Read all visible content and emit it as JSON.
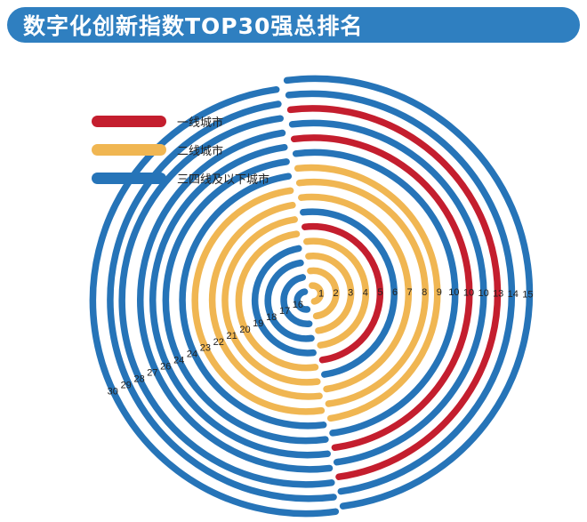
{
  "title": "数字化创新指数TOP30强总排名",
  "colors": {
    "tier1": "#c41e2e",
    "tier2": "#f0b652",
    "tier3": "#2674b8",
    "title_bg": "#2f7fc0"
  },
  "legend": [
    {
      "label": "一线城市",
      "color": "#c41e2e"
    },
    {
      "label": "二线城市",
      "color": "#f0b652"
    },
    {
      "label": "三四线及以下城市",
      "color": "#2674b8"
    }
  ],
  "chart_data": {
    "type": "radial-bar",
    "title": "数字化创新指数TOP30强总排名",
    "categories": [
      "一线城市",
      "二线城市",
      "三四线及以下城市"
    ],
    "right_group": [
      {
        "label": "1",
        "tier": "二线城市"
      },
      {
        "label": "2",
        "tier": "二线城市"
      },
      {
        "label": "3",
        "tier": "二线城市"
      },
      {
        "label": "4",
        "tier": "二线城市"
      },
      {
        "label": "5",
        "tier": "一线城市"
      },
      {
        "label": "6",
        "tier": "三四线及以下城市"
      },
      {
        "label": "7",
        "tier": "二线城市"
      },
      {
        "label": "8",
        "tier": "二线城市"
      },
      {
        "label": "9",
        "tier": "二线城市"
      },
      {
        "label": "10",
        "tier": "三四线及以下城市"
      },
      {
        "label": "10",
        "tier": "一线城市"
      },
      {
        "label": "10",
        "tier": "三四线及以下城市"
      },
      {
        "label": "13",
        "tier": "一线城市"
      },
      {
        "label": "14",
        "tier": "三四线及以下城市"
      },
      {
        "label": "15",
        "tier": "三四线及以下城市"
      }
    ],
    "left_group": [
      {
        "label": "16",
        "tier": "三四线及以下城市"
      },
      {
        "label": "17",
        "tier": "三四线及以下城市"
      },
      {
        "label": "18",
        "tier": "三四线及以下城市"
      },
      {
        "label": "19",
        "tier": "三四线及以下城市"
      },
      {
        "label": "20",
        "tier": "二线城市"
      },
      {
        "label": "21",
        "tier": "二线城市"
      },
      {
        "label": "22",
        "tier": "二线城市"
      },
      {
        "label": "23",
        "tier": "二线城市"
      },
      {
        "label": "24",
        "tier": "三四线及以下城市"
      },
      {
        "label": "24",
        "tier": "三四线及以下城市"
      },
      {
        "label": "26",
        "tier": "三四线及以下城市"
      },
      {
        "label": "27",
        "tier": "三四线及以下城市"
      },
      {
        "label": "28",
        "tier": "三四线及以下城市"
      },
      {
        "label": "29",
        "tier": "三四线及以下城市"
      },
      {
        "label": "30",
        "tier": "三四线及以下城市"
      }
    ]
  }
}
